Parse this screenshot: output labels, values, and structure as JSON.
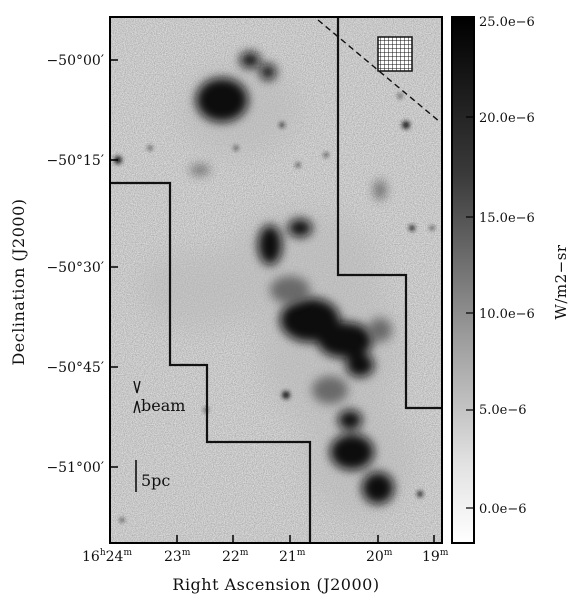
{
  "figure": {
    "axes": {
      "xlabel": "Right Ascension (J2000)",
      "ylabel": "Declination (J2000)",
      "x_ticks": [
        {
          "label": "16h24m",
          "h": "16",
          "m": "24"
        },
        {
          "label": "23m"
        },
        {
          "label": "22m"
        },
        {
          "label": "21m"
        },
        {
          "label": "20m"
        },
        {
          "label": "19m"
        }
      ],
      "y_ticks": [
        "−50°00′",
        "−50°15′",
        "−50°30′",
        "−50°45′",
        "−51°00′"
      ]
    },
    "colorbar": {
      "label": "W/m2−sr",
      "ticks": [
        "25.0e−6",
        "20.0e−6",
        "15.0e−6",
        "10.0e−6",
        "5.0e−6",
        "0.0e−6"
      ],
      "values": [
        2.5e-05,
        2e-05,
        1.5e-05,
        1e-05,
        5e-06,
        0.0
      ]
    },
    "annotations": {
      "beam": "beam",
      "scalebar": "5pc"
    }
  }
}
